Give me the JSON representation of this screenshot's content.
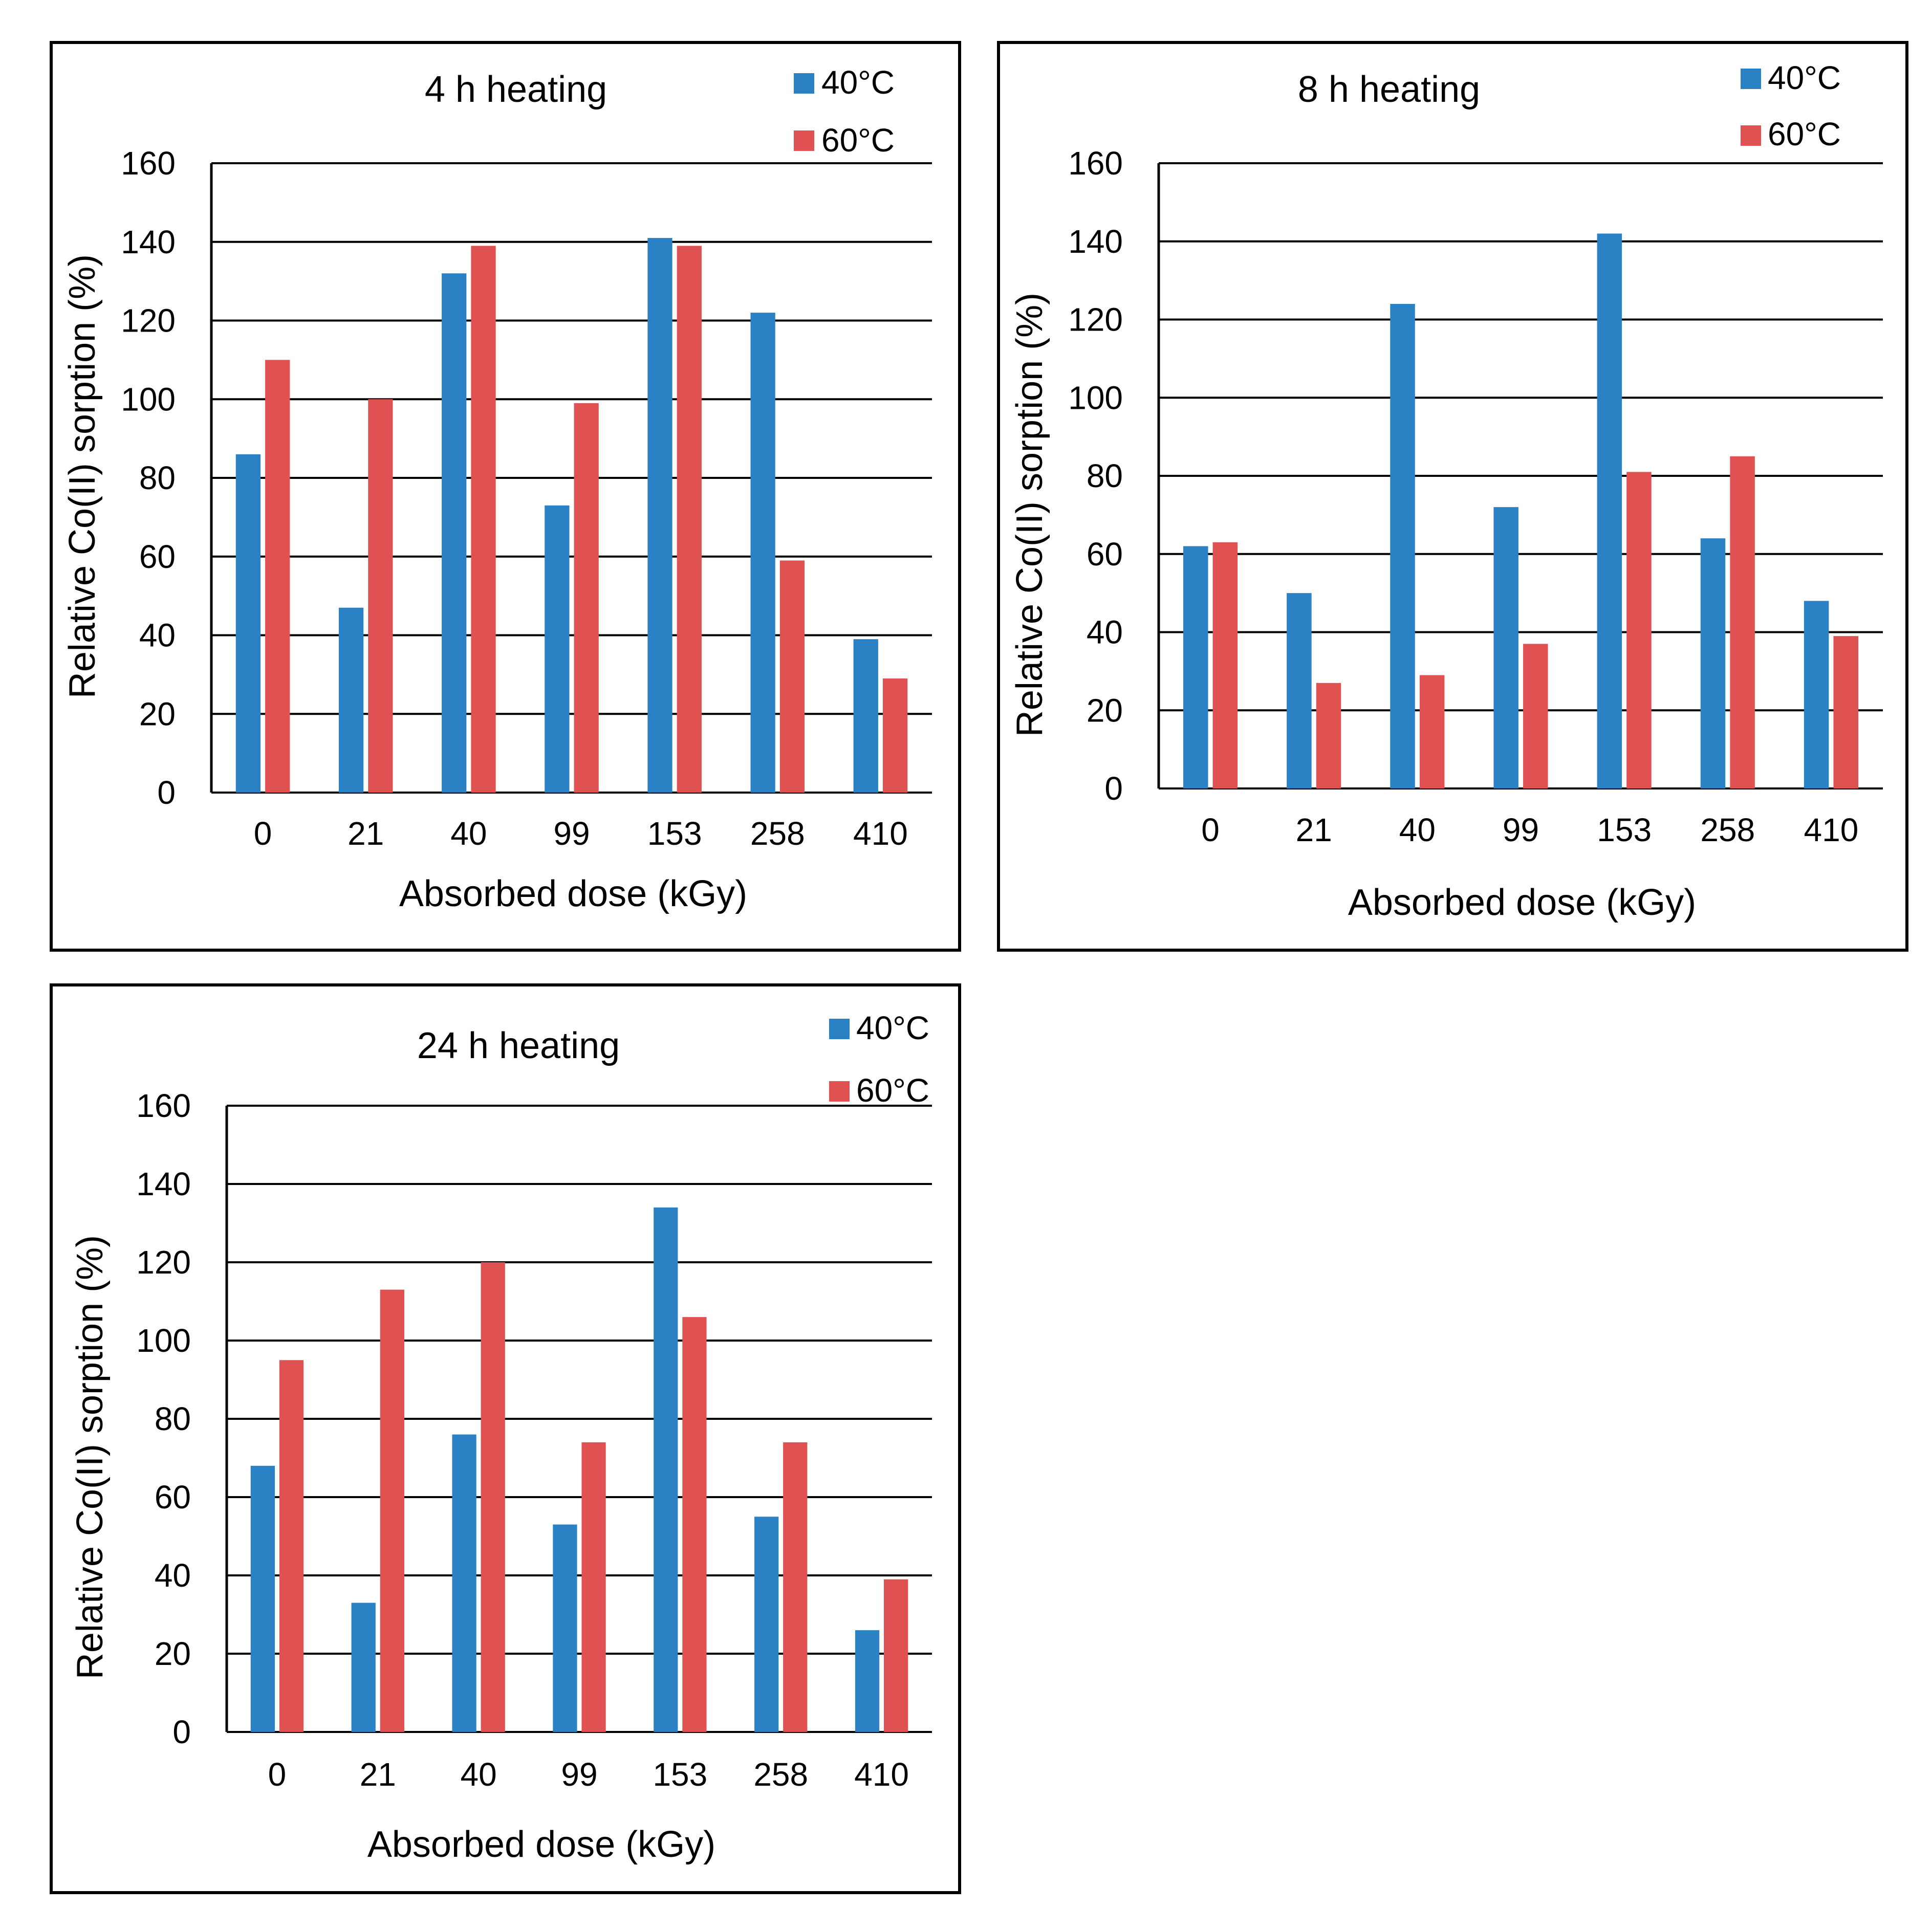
{
  "colors": {
    "series_40": "#2a82c4",
    "series_60": "#e05252",
    "grid": "#000000"
  },
  "chart_data": [
    {
      "type": "bar",
      "title": "4 h heating",
      "xlabel": "Absorbed dose (kGy)",
      "ylabel": "Relative Co(II) sorption (%)",
      "ylim": [
        0,
        160
      ],
      "yticks": [
        "0",
        "20",
        "40",
        "60",
        "80",
        "100",
        "120",
        "140",
        "160"
      ],
      "categories": [
        "0",
        "21",
        "40",
        "99",
        "153",
        "258",
        "410"
      ],
      "legend_position": "top-right",
      "series": [
        {
          "name": "40°C",
          "values": [
            86,
            47,
            132,
            73,
            141,
            122,
            39
          ]
        },
        {
          "name": "60°C",
          "values": [
            110,
            100,
            139,
            99,
            139,
            59,
            29
          ]
        }
      ]
    },
    {
      "type": "bar",
      "title": "8 h heating",
      "xlabel": "Absorbed dose (kGy)",
      "ylabel": "Relative Co(II) sorption (%)",
      "ylim": [
        0,
        160
      ],
      "yticks": [
        "0",
        "20",
        "40",
        "60",
        "80",
        "100",
        "120",
        "140",
        "160"
      ],
      "categories": [
        "0",
        "21",
        "40",
        "99",
        "153",
        "258",
        "410"
      ],
      "legend_position": "top-right",
      "series": [
        {
          "name": "40°C",
          "values": [
            62,
            50,
            124,
            72,
            142,
            64,
            48
          ]
        },
        {
          "name": "60°C",
          "values": [
            63,
            27,
            29,
            37,
            81,
            85,
            39
          ]
        }
      ]
    },
    {
      "type": "bar",
      "title": "24 h heating",
      "xlabel": "Absorbed dose (kGy)",
      "ylabel": "Relative Co(II) sorption (%)",
      "ylim": [
        0,
        160
      ],
      "yticks": [
        "0",
        "20",
        "40",
        "60",
        "80",
        "100",
        "120",
        "140",
        "160"
      ],
      "categories": [
        "0",
        "21",
        "40",
        "99",
        "153",
        "258",
        "410"
      ],
      "legend_position": "top-right",
      "series": [
        {
          "name": "40°C",
          "values": [
            68,
            33,
            76,
            53,
            134,
            55,
            26
          ]
        },
        {
          "name": "60°C",
          "values": [
            95,
            113,
            120,
            74,
            106,
            74,
            39
          ]
        }
      ]
    }
  ]
}
